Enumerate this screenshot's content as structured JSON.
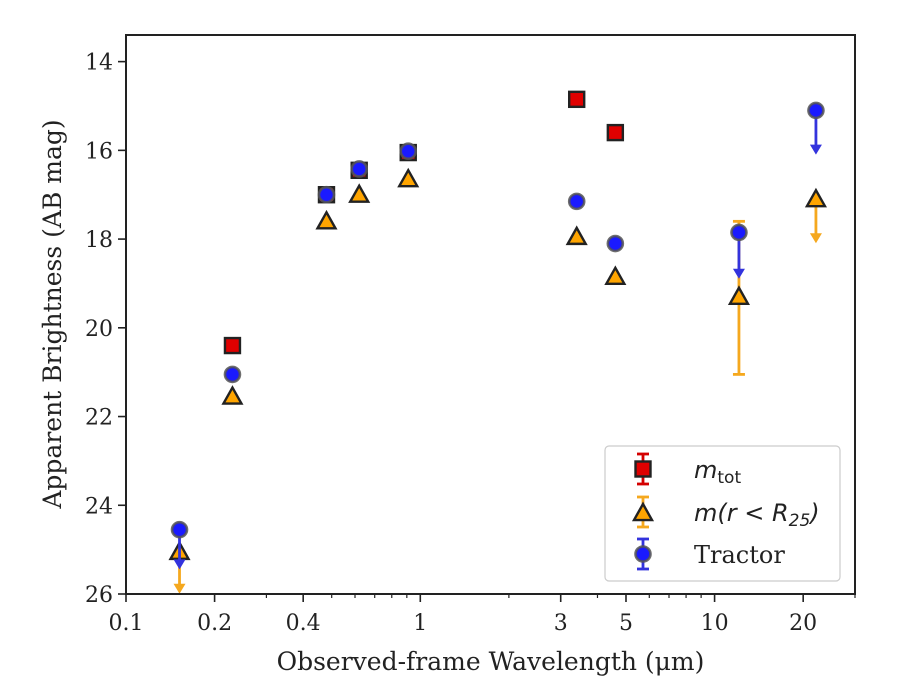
{
  "chart_data": {
    "type": "scatter",
    "xlabel": "Observed-frame Wavelength (μm)",
    "ylabel": "Apparent Brightness (AB mag)",
    "xscale": "log",
    "xlim": [
      0.1,
      30
    ],
    "ylim": [
      26,
      13.4
    ],
    "y_inverted": true,
    "x_ticks": [
      {
        "value": 0.1,
        "label": "0.1"
      },
      {
        "value": 0.2,
        "label": "0.2"
      },
      {
        "value": 0.4,
        "label": "0.4"
      },
      {
        "value": 1,
        "label": "1"
      },
      {
        "value": 3,
        "label": "3"
      },
      {
        "value": 5,
        "label": "5"
      },
      {
        "value": 10,
        "label": "10"
      },
      {
        "value": 20,
        "label": "20"
      }
    ],
    "y_ticks": [
      {
        "value": 14,
        "label": "14"
      },
      {
        "value": 16,
        "label": "16"
      },
      {
        "value": 18,
        "label": "18"
      },
      {
        "value": 20,
        "label": "20"
      },
      {
        "value": 22,
        "label": "22"
      },
      {
        "value": 24,
        "label": "24"
      },
      {
        "value": 26,
        "label": "26"
      }
    ],
    "grid": false,
    "legend_position": "lower-right",
    "series": [
      {
        "name": "m_tot",
        "legend_main": "m",
        "legend_sub": "tot",
        "marker": "square",
        "color": "#e00000",
        "errcolor": "#d40000",
        "points": [
          {
            "x": 0.23,
            "y": 20.4
          },
          {
            "x": 0.48,
            "y": 17.0
          },
          {
            "x": 0.62,
            "y": 16.45
          },
          {
            "x": 0.91,
            "y": 16.05
          },
          {
            "x": 3.4,
            "y": 14.85
          },
          {
            "x": 4.6,
            "y": 15.6
          }
        ]
      },
      {
        "name": "m(r < R25)",
        "legend_main": "m(r < R",
        "legend_sub": "25",
        "legend_tail": ")",
        "marker": "triangle",
        "color": "#ffa500",
        "errcolor": "#f5a81e",
        "points": [
          {
            "x": 0.152,
            "y": 25.05,
            "upper_limit_to": 25.95
          },
          {
            "x": 0.23,
            "y": 21.55
          },
          {
            "x": 0.48,
            "y": 17.6
          },
          {
            "x": 0.62,
            "y": 17.0
          },
          {
            "x": 0.91,
            "y": 16.65
          },
          {
            "x": 3.4,
            "y": 17.95
          },
          {
            "x": 4.6,
            "y": 18.85
          },
          {
            "x": 12.1,
            "y": 19.3,
            "err": [
              17.6,
              21.05
            ]
          },
          {
            "x": 22.1,
            "y": 17.1,
            "upper_limit_to": 18.05
          }
        ]
      },
      {
        "name": "Tractor",
        "legend_main": "Tractor",
        "marker": "circle",
        "color": "#1a1aff",
        "errcolor": "#3333dd",
        "points": [
          {
            "x": 0.152,
            "y": 24.55,
            "upper_limit_to": 25.4
          },
          {
            "x": 0.23,
            "y": 21.05
          },
          {
            "x": 0.48,
            "y": 17.0
          },
          {
            "x": 0.62,
            "y": 16.42
          },
          {
            "x": 0.91,
            "y": 16.02
          },
          {
            "x": 3.4,
            "y": 17.15
          },
          {
            "x": 4.6,
            "y": 18.1
          },
          {
            "x": 12.1,
            "y": 17.85,
            "upper_limit_to": 18.85
          },
          {
            "x": 22.1,
            "y": 15.1,
            "upper_limit_to": 16.05
          }
        ]
      }
    ]
  }
}
